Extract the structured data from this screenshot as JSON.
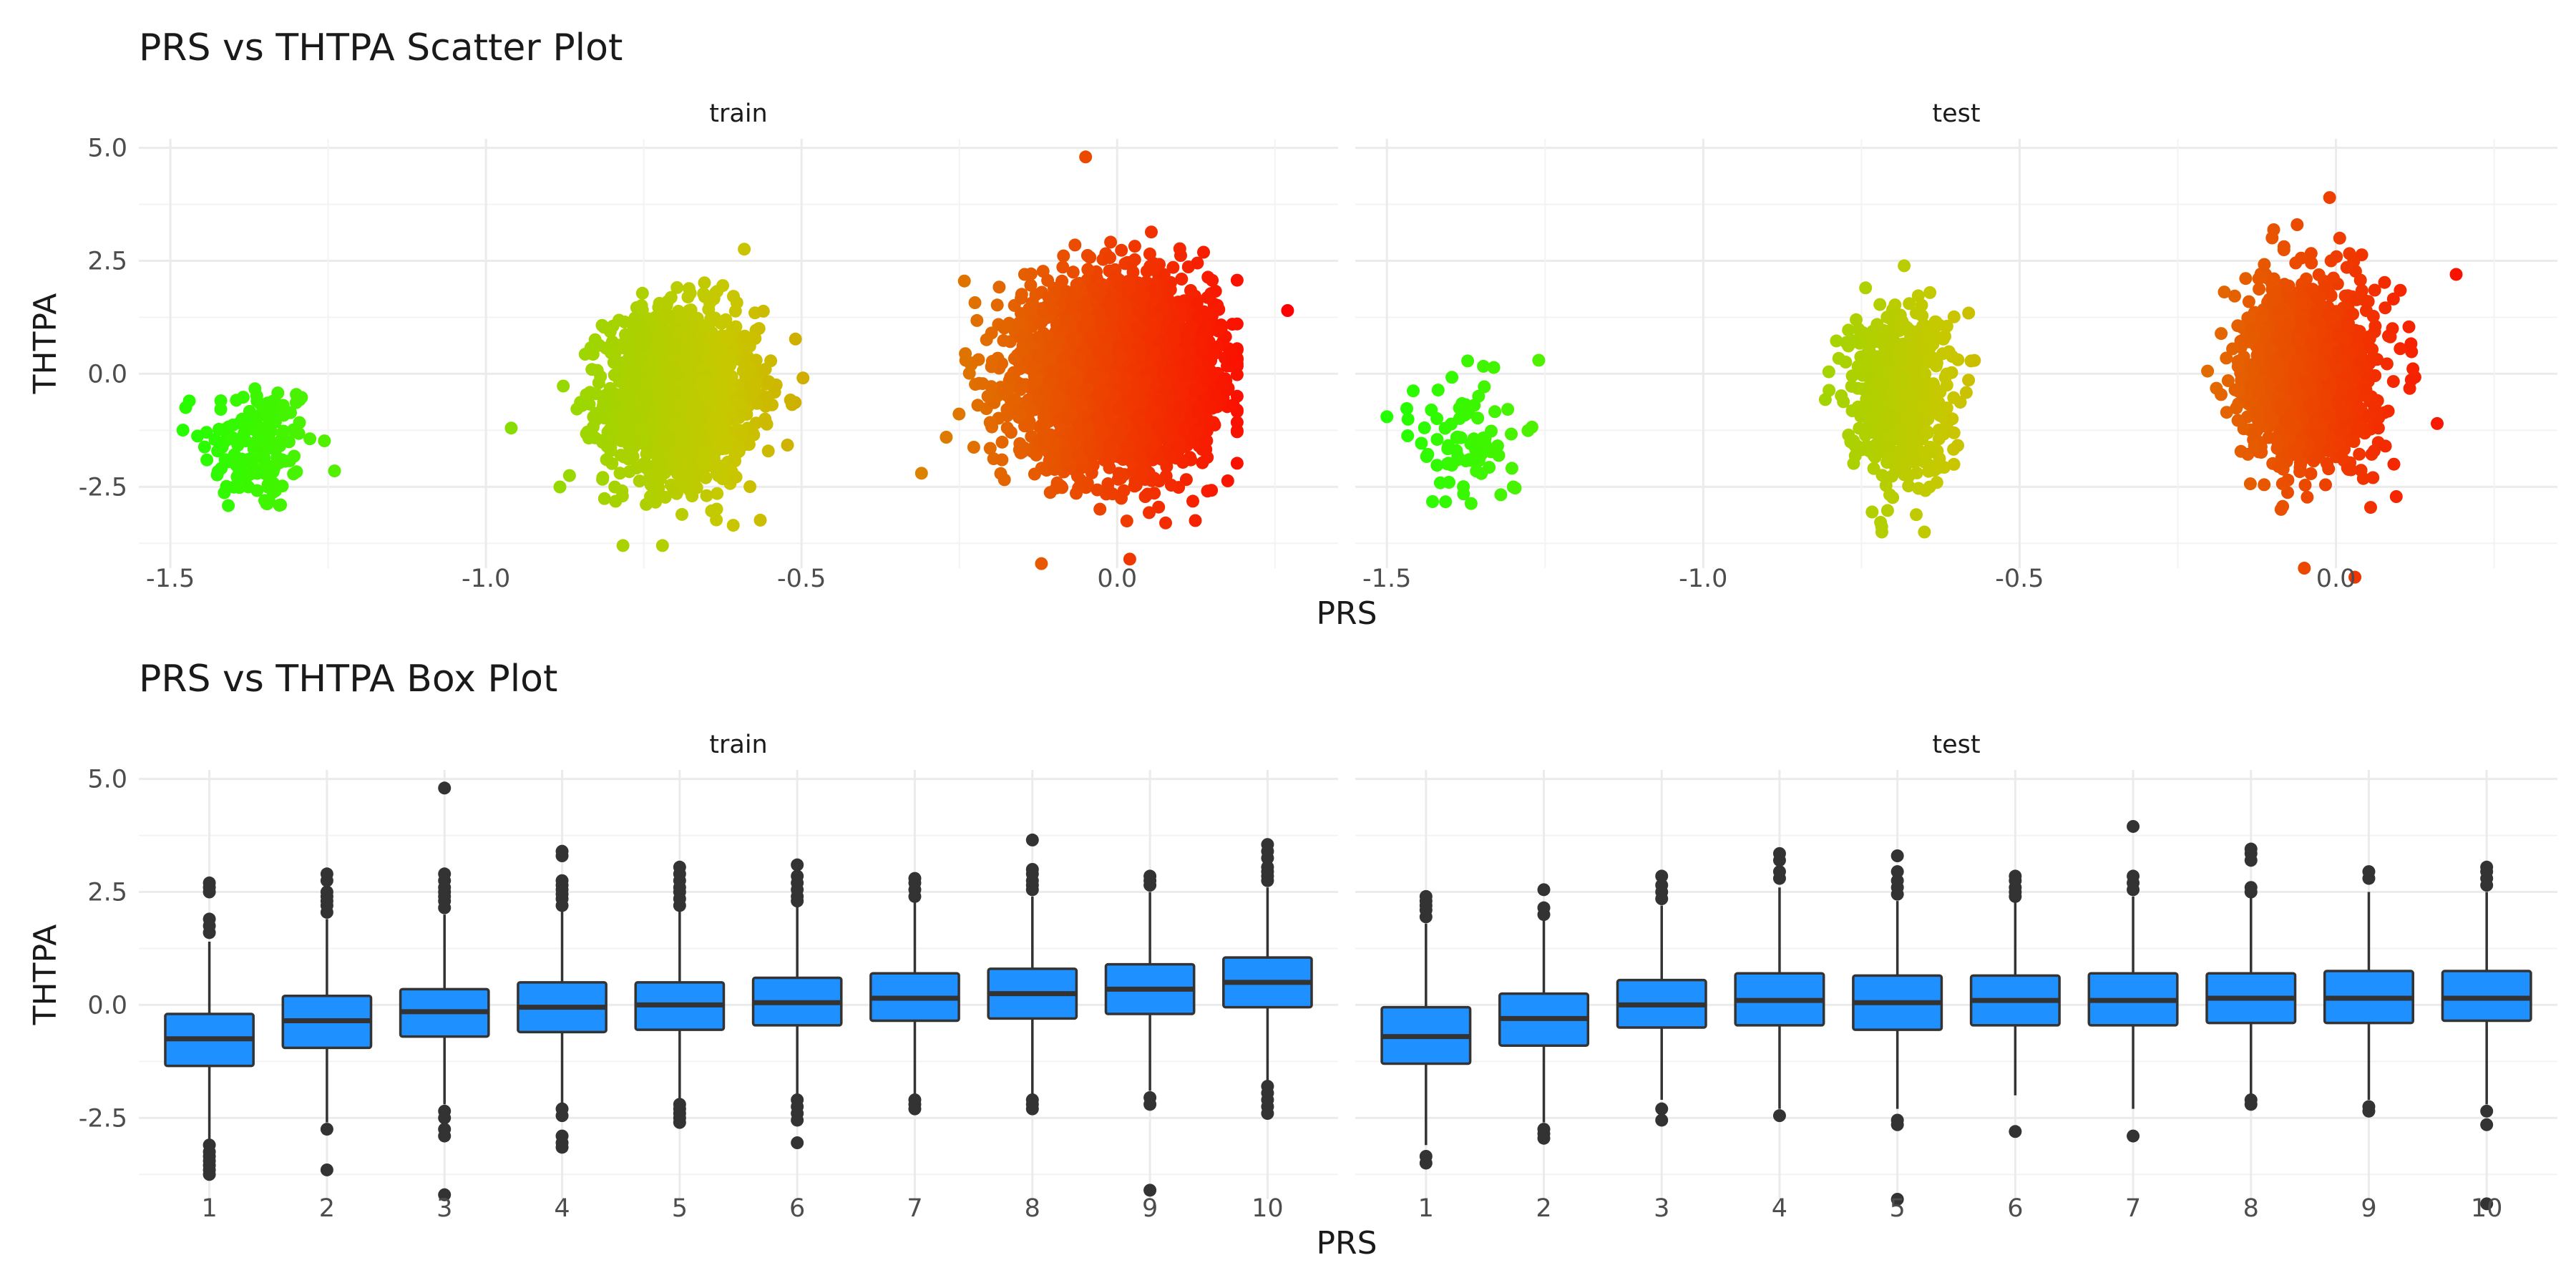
{
  "colors": {
    "box_fill": "#1e90ff",
    "box_line": "#333333",
    "gradient_low": "#22ff00",
    "gradient_mid": "#c8c800",
    "gradient_high": "#ff0000"
  },
  "chart_data": [
    {
      "type": "scatter",
      "title": "PRS vs THTPA Scatter Plot",
      "xlabel": "PRS",
      "ylabel": "THTPA",
      "xlim": [
        -1.55,
        0.35
      ],
      "ylim": [
        -4.3,
        5.2
      ],
      "x_ticks": [
        -1.5,
        -1.0,
        -0.5,
        0.0
      ],
      "x_tick_labels": [
        "-1.5",
        "-1.0",
        "-0.5",
        "0.0"
      ],
      "y_ticks": [
        -2.5,
        0.0,
        2.5,
        5.0
      ],
      "y_tick_labels": [
        "-2.5",
        "0.0",
        "2.5",
        "5.0"
      ],
      "grid": true,
      "color_encoding": "gradient by PRS (green low, red high)",
      "panels": [
        {
          "label": "train",
          "clusters": [
            {
              "cx": -1.36,
              "cy": -1.6,
              "sx": 0.045,
              "sy": 0.75,
              "n": 150,
              "xmin": -1.48,
              "xmax": -1.24,
              "ymin": -3.7,
              "ymax": 1.4
            },
            {
              "cx": -0.69,
              "cy": -0.5,
              "sx": 0.06,
              "sy": 0.95,
              "n": 1400,
              "xmin": -0.92,
              "xmax": -0.49,
              "ymin": -3.8,
              "ymax": 2.9
            },
            {
              "cx": 0.0,
              "cy": 0.0,
              "sx": 0.075,
              "sy": 0.95,
              "n": 3500,
              "xmin": -0.31,
              "xmax": 0.19,
              "ymin": -3.3,
              "ymax": 3.6
            }
          ],
          "points": [
            {
              "x": -0.05,
              "y": 4.8
            },
            {
              "x": 0.27,
              "y": 1.4
            },
            {
              "x": -0.12,
              "y": -4.2
            },
            {
              "x": 0.02,
              "y": -4.1
            },
            {
              "x": -0.31,
              "y": -2.2
            },
            {
              "x": -0.96,
              "y": -1.2
            },
            {
              "x": -1.47,
              "y": -0.6
            }
          ]
        },
        {
          "label": "test",
          "clusters": [
            {
              "cx": -1.37,
              "cy": -1.4,
              "sx": 0.04,
              "sy": 0.75,
              "n": 80,
              "xmin": -1.47,
              "xmax": -1.27,
              "ymin": -3.4,
              "ymax": 0.4
            },
            {
              "cx": -0.69,
              "cy": -0.4,
              "sx": 0.04,
              "sy": 0.95,
              "n": 600,
              "xmin": -0.82,
              "xmax": -0.57,
              "ymin": -3.5,
              "ymax": 2.4
            },
            {
              "cx": -0.04,
              "cy": 0.0,
              "sx": 0.05,
              "sy": 0.95,
              "n": 1600,
              "xmin": -0.24,
              "xmax": 0.14,
              "ymin": -3.0,
              "ymax": 3.3
            }
          ],
          "points": [
            {
              "x": -0.01,
              "y": 3.9
            },
            {
              "x": -0.05,
              "y": -4.3
            },
            {
              "x": 0.03,
              "y": -4.5
            },
            {
              "x": 0.19,
              "y": 2.2
            },
            {
              "x": 0.16,
              "y": -1.1
            },
            {
              "x": -1.5,
              "y": -0.95
            },
            {
              "x": -1.26,
              "y": 0.3
            }
          ]
        }
      ]
    },
    {
      "type": "box",
      "title": "PRS vs THTPA Box Plot",
      "xlabel": "PRS",
      "ylabel": "THTPA",
      "categories": [
        "1",
        "2",
        "3",
        "4",
        "5",
        "6",
        "7",
        "8",
        "9",
        "10"
      ],
      "ylim": [
        -4.3,
        5.2
      ],
      "y_ticks": [
        -2.5,
        0.0,
        2.5,
        5.0
      ],
      "y_tick_labels": [
        "-2.5",
        "0.0",
        "2.5",
        "5.0"
      ],
      "grid": true,
      "panels": [
        {
          "label": "train",
          "boxes": [
            {
              "q1": -1.35,
              "median": -0.75,
              "q3": -0.2,
              "lower": -3.0,
              "upper": 1.4,
              "outliers": [
                -3.1,
                -3.25,
                -3.35,
                -3.45,
                -3.55,
                -3.65,
                -3.75,
                1.6,
                1.75,
                1.9,
                2.5,
                2.6,
                2.7
              ]
            },
            {
              "q1": -0.95,
              "median": -0.35,
              "q3": 0.2,
              "lower": -2.6,
              "upper": 1.9,
              "outliers": [
                -2.75,
                -3.65,
                2.05,
                2.2,
                2.3,
                2.4,
                2.5,
                2.75,
                2.9
              ]
            },
            {
              "q1": -0.7,
              "median": -0.15,
              "q3": 0.35,
              "lower": -2.2,
              "upper": 2.0,
              "outliers": [
                -2.35,
                -2.5,
                -2.75,
                -2.9,
                -4.2,
                2.15,
                2.3,
                2.4,
                2.5,
                2.6,
                2.75,
                2.9,
                4.8
              ]
            },
            {
              "q1": -0.6,
              "median": -0.05,
              "q3": 0.5,
              "lower": -2.2,
              "upper": 2.1,
              "outliers": [
                -2.3,
                -2.45,
                -2.9,
                -3.05,
                -3.15,
                2.2,
                2.35,
                2.45,
                2.55,
                2.65,
                2.75,
                3.3,
                3.4
              ]
            },
            {
              "q1": -0.55,
              "median": 0.0,
              "q3": 0.5,
              "lower": -2.1,
              "upper": 2.1,
              "outliers": [
                -2.2,
                -2.3,
                -2.4,
                -2.5,
                -2.6,
                2.2,
                2.35,
                2.5,
                2.6,
                2.75,
                2.9,
                3.05
              ]
            },
            {
              "q1": -0.45,
              "median": 0.05,
              "q3": 0.6,
              "lower": -2.0,
              "upper": 2.2,
              "outliers": [
                -2.1,
                -2.25,
                -2.4,
                -2.55,
                -3.05,
                2.3,
                2.4,
                2.55,
                2.7,
                2.85,
                3.1
              ]
            },
            {
              "q1": -0.35,
              "median": 0.15,
              "q3": 0.7,
              "lower": -2.0,
              "upper": 2.3,
              "outliers": [
                -2.1,
                -2.2,
                -2.3,
                2.4,
                2.55,
                2.7,
                2.8
              ]
            },
            {
              "q1": -0.3,
              "median": 0.25,
              "q3": 0.8,
              "lower": -2.0,
              "upper": 2.4,
              "outliers": [
                -2.1,
                -2.2,
                -2.3,
                2.55,
                2.65,
                2.75,
                2.9,
                3.0,
                3.65
              ]
            },
            {
              "q1": -0.2,
              "median": 0.35,
              "q3": 0.9,
              "lower": -1.9,
              "upper": 2.5,
              "outliers": [
                -2.05,
                -2.2,
                -4.1,
                2.65,
                2.75,
                2.85
              ]
            },
            {
              "q1": -0.05,
              "median": 0.5,
              "q3": 1.05,
              "lower": -1.7,
              "upper": 2.6,
              "outliers": [
                -1.8,
                -1.95,
                -2.1,
                -2.25,
                -2.4,
                2.75,
                2.85,
                2.95,
                3.05,
                3.25,
                3.4,
                3.55
              ]
            }
          ]
        },
        {
          "label": "test",
          "boxes": [
            {
              "q1": -1.3,
              "median": -0.7,
              "q3": -0.05,
              "lower": -3.1,
              "upper": 1.8,
              "outliers": [
                -3.35,
                -3.5,
                1.95,
                2.1,
                2.2,
                2.3,
                2.4
              ]
            },
            {
              "q1": -0.9,
              "median": -0.3,
              "q3": 0.25,
              "lower": -2.6,
              "upper": 1.9,
              "outliers": [
                -2.75,
                -2.85,
                -2.95,
                2.0,
                2.15,
                2.55
              ]
            },
            {
              "q1": -0.5,
              "median": 0.0,
              "q3": 0.55,
              "lower": -2.1,
              "upper": 2.2,
              "outliers": [
                -2.3,
                -2.55,
                2.35,
                2.5,
                2.65,
                2.85
              ]
            },
            {
              "q1": -0.45,
              "median": 0.1,
              "q3": 0.7,
              "lower": -2.3,
              "upper": 2.6,
              "outliers": [
                -2.45,
                2.8,
                2.95,
                3.2,
                3.35
              ]
            },
            {
              "q1": -0.55,
              "median": 0.05,
              "q3": 0.65,
              "lower": -2.3,
              "upper": 2.3,
              "outliers": [
                -2.55,
                -2.65,
                -4.3,
                2.45,
                2.6,
                2.75,
                2.95,
                3.3
              ]
            },
            {
              "q1": -0.45,
              "median": 0.1,
              "q3": 0.65,
              "lower": -2.0,
              "upper": 2.3,
              "outliers": [
                -2.8,
                2.4,
                2.5,
                2.6,
                2.75,
                2.85
              ]
            },
            {
              "q1": -0.45,
              "median": 0.1,
              "q3": 0.7,
              "lower": -2.3,
              "upper": 2.4,
              "outliers": [
                -2.9,
                2.55,
                2.7,
                2.85,
                3.95
              ]
            },
            {
              "q1": -0.4,
              "median": 0.15,
              "q3": 0.7,
              "lower": -2.0,
              "upper": 2.4,
              "outliers": [
                -2.1,
                -2.2,
                2.5,
                2.6,
                3.2,
                3.35,
                3.45
              ]
            },
            {
              "q1": -0.4,
              "median": 0.15,
              "q3": 0.75,
              "lower": -2.1,
              "upper": 2.5,
              "outliers": [
                -2.25,
                -2.35,
                2.8,
                2.95
              ]
            },
            {
              "q1": -0.35,
              "median": 0.15,
              "q3": 0.75,
              "lower": -2.2,
              "upper": 2.5,
              "outliers": [
                -2.35,
                -2.65,
                -4.4,
                2.65,
                2.8,
                2.95,
                3.05
              ]
            }
          ]
        }
      ]
    }
  ]
}
